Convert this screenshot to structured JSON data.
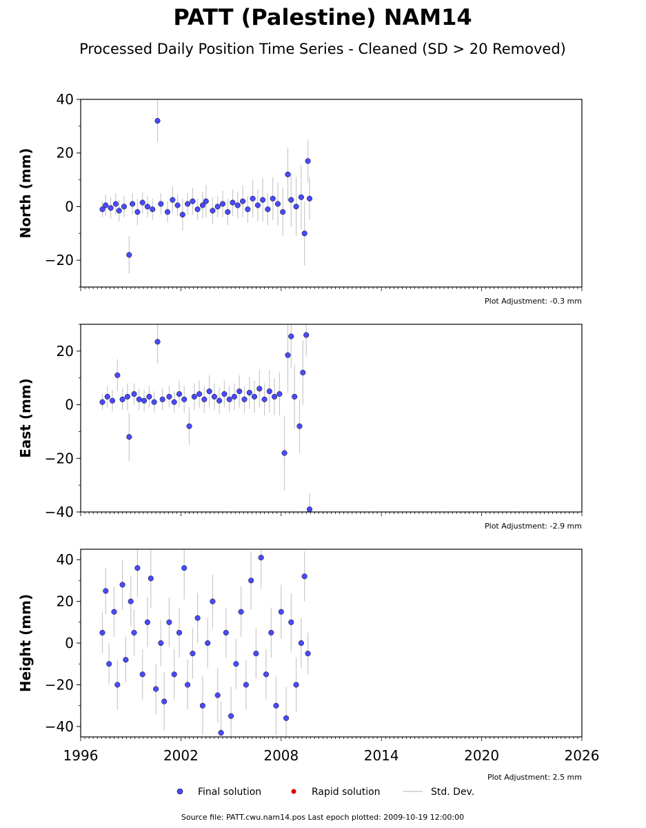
{
  "title": "PATT (Palestine) NAM14",
  "subtitle": "Processed Daily Position Time Series - Cleaned (SD > 20 Removed)",
  "colors": {
    "final_marker": "#4a4aff",
    "marker_edge": "#000000",
    "rapid_marker": "#dd0000",
    "std_dev": "#c8c8c8"
  },
  "legend": {
    "placement": "bottom-center",
    "final_label": "Final solution",
    "rapid_label": "Rapid solution",
    "std_label": "Std. Dev."
  },
  "footer": "Source file: PATT.cwu.nam14.pos  Last epoch plotted: 2009-10-19 12:00:00",
  "chart_data": [
    {
      "type": "scatter",
      "ylabel": "North (mm)",
      "xlim": [
        1996,
        2026
      ],
      "ylim": [
        -30,
        40
      ],
      "yticks": [
        -20,
        0,
        20,
        40
      ],
      "ytick_labels": [
        "−20",
        "0",
        "20",
        "40"
      ],
      "adjustment": "Plot Adjustment: -0.3 mm",
      "series": [
        {
          "name": "Final solution",
          "x": [
            1997.3,
            1997.5,
            1997.8,
            1998.1,
            1998.3,
            1998.6,
            1998.9,
            1999.1,
            1999.4,
            1999.7,
            2000.0,
            2000.3,
            2000.6,
            2000.8,
            2001.2,
            2001.5,
            2001.8,
            2002.1,
            2002.4,
            2002.7,
            2003.0,
            2003.3,
            2003.5,
            2003.9,
            2004.2,
            2004.5,
            2004.8,
            2005.1,
            2005.4,
            2005.7,
            2006.0,
            2006.3,
            2006.6,
            2006.9,
            2007.2,
            2007.5,
            2007.8,
            2008.1,
            2008.4,
            2008.6,
            2008.9,
            2009.2,
            2009.4,
            2009.6,
            2009.7
          ],
          "y": [
            -1.0,
            0.5,
            -0.5,
            1.0,
            -1.5,
            0.0,
            -18.0,
            1.0,
            -2.0,
            1.5,
            0.0,
            -1.0,
            32.0,
            1.0,
            -2.0,
            2.5,
            0.5,
            -3.0,
            1.0,
            2.0,
            -1.0,
            0.5,
            2.0,
            -1.5,
            0.0,
            1.0,
            -2.0,
            1.5,
            0.5,
            2.0,
            -1.0,
            3.0,
            0.5,
            2.5,
            -1.0,
            3.0,
            1.0,
            -2.0,
            12.0,
            2.5,
            0.0,
            3.5,
            -10.0,
            17.0,
            3.0
          ],
          "err": [
            3,
            4,
            4,
            4,
            4,
            4,
            7,
            4,
            5,
            4,
            4,
            4,
            8,
            4,
            4,
            5,
            4,
            6,
            4,
            5,
            4,
            5,
            6,
            5,
            4,
            5,
            5,
            5,
            5,
            6,
            5,
            7,
            6,
            8,
            6,
            8,
            8,
            9,
            10,
            10,
            11,
            12,
            12,
            8,
            8
          ]
        }
      ]
    },
    {
      "type": "scatter",
      "ylabel": "East (mm)",
      "xlim": [
        1996,
        2026
      ],
      "ylim": [
        -40,
        30
      ],
      "yticks": [
        -40,
        -20,
        0,
        20
      ],
      "ytick_labels": [
        "−40",
        "−20",
        "0",
        "20"
      ],
      "adjustment": "Plot Adjustment: -2.9 mm",
      "series": [
        {
          "name": "Final solution",
          "x": [
            1997.3,
            1997.6,
            1997.9,
            1998.2,
            1998.5,
            1998.8,
            1998.9,
            1999.2,
            1999.5,
            1999.8,
            2000.1,
            2000.4,
            2000.6,
            2000.9,
            2001.3,
            2001.6,
            2001.9,
            2002.2,
            2002.5,
            2002.8,
            2003.1,
            2003.4,
            2003.7,
            2004.0,
            2004.3,
            2004.6,
            2004.9,
            2005.2,
            2005.5,
            2005.8,
            2006.1,
            2006.4,
            2006.7,
            2007.0,
            2007.3,
            2007.6,
            2007.9,
            2008.2,
            2008.4,
            2008.6,
            2008.8,
            2009.1,
            2009.3,
            2009.5,
            2009.7
          ],
          "y": [
            1.0,
            3.0,
            1.5,
            11.0,
            2.0,
            3.0,
            -12.0,
            4.0,
            2.0,
            1.5,
            3.0,
            1.0,
            23.5,
            2.0,
            3.0,
            1.0,
            4.0,
            2.0,
            -8.0,
            3.0,
            4.0,
            2.0,
            5.0,
            3.0,
            1.5,
            4.0,
            2.0,
            3.0,
            5.0,
            2.0,
            4.5,
            3.0,
            6.0,
            2.0,
            5.0,
            3.0,
            4.0,
            -18.0,
            18.5,
            25.5,
            3.0,
            -8.0,
            12.0,
            26.0,
            -39.0
          ],
          "err": [
            3,
            4,
            4,
            6,
            4,
            5,
            9,
            4,
            4,
            4,
            4,
            4,
            8,
            4,
            4,
            4,
            5,
            5,
            7,
            5,
            5,
            5,
            6,
            5,
            5,
            5,
            5,
            5,
            6,
            5,
            6,
            6,
            7,
            6,
            8,
            7,
            8,
            14,
            14,
            12,
            12,
            10,
            12,
            8,
            6
          ]
        }
      ]
    },
    {
      "type": "scatter",
      "ylabel": "Height (mm)",
      "xlim": [
        1996,
        2026
      ],
      "ylim": [
        -45,
        45
      ],
      "yticks": [
        -40,
        -20,
        0,
        20,
        40
      ],
      "ytick_labels": [
        "−40",
        "−20",
        "0",
        "20",
        "40"
      ],
      "xticks": [
        1996,
        2002,
        2008,
        2014,
        2020,
        2026
      ],
      "xtick_labels": [
        "1996",
        "2002",
        "2008",
        "2014",
        "2020",
        "2026"
      ],
      "adjustment": "Plot Adjustment: 2.5 mm",
      "series": [
        {
          "name": "Final solution",
          "x": [
            1997.3,
            1997.5,
            1997.7,
            1998.0,
            1998.2,
            1998.5,
            1998.7,
            1999.0,
            1999.2,
            1999.4,
            1999.7,
            2000.0,
            2000.2,
            2000.5,
            2000.8,
            2001.0,
            2001.3,
            2001.6,
            2001.9,
            2002.2,
            2002.4,
            2002.7,
            2003.0,
            2003.3,
            2003.6,
            2003.9,
            2004.2,
            2004.4,
            2004.7,
            2005.0,
            2005.3,
            2005.6,
            2005.9,
            2006.2,
            2006.5,
            2006.8,
            2007.1,
            2007.4,
            2007.7,
            2008.0,
            2008.3,
            2008.6,
            2008.9,
            2009.2,
            2009.4,
            2009.6
          ],
          "y": [
            5.0,
            25.0,
            -10.0,
            15.0,
            -20.0,
            28.0,
            -8.0,
            20.0,
            5.0,
            36.0,
            -15.0,
            10.0,
            31.0,
            -22.0,
            0.0,
            -28.0,
            10.0,
            -15.0,
            5.0,
            36.0,
            -20.0,
            -5.0,
            12.0,
            -30.0,
            0.0,
            20.0,
            -25.0,
            -43.0,
            5.0,
            -35.0,
            -10.0,
            15.0,
            -20.0,
            30.0,
            -5.0,
            41.0,
            -15.0,
            5.0,
            -30.0,
            15.0,
            -36.0,
            10.0,
            -20.0,
            0.0,
            32.0,
            -5.0
          ],
          "err": [
            10,
            11,
            10,
            12,
            12,
            12,
            11,
            12,
            11,
            14,
            12,
            12,
            14,
            12,
            11,
            14,
            12,
            12,
            12,
            15,
            12,
            12,
            12,
            14,
            12,
            13,
            13,
            15,
            12,
            14,
            12,
            12,
            12,
            14,
            12,
            15,
            12,
            12,
            14,
            13,
            15,
            14,
            13,
            12,
            12,
            10
          ]
        }
      ]
    }
  ]
}
